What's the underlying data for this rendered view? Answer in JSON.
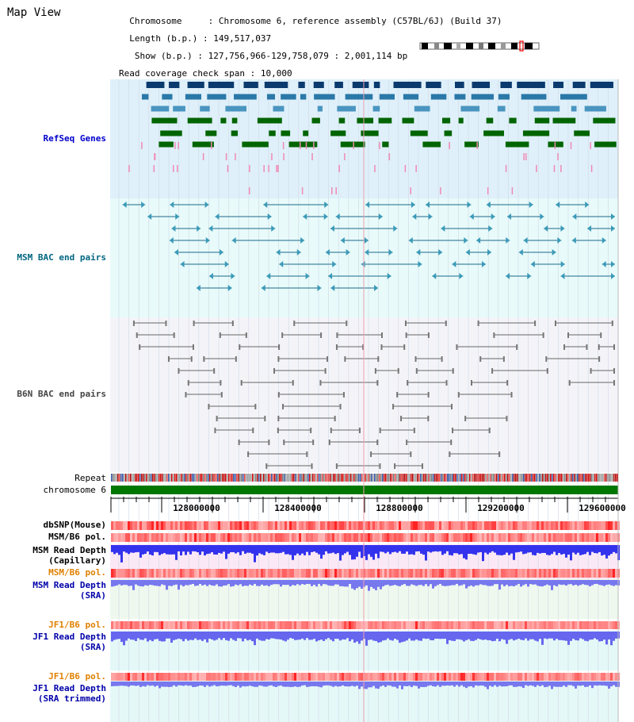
{
  "window": {
    "title": "Map View"
  },
  "info": {
    "chromosome_label": "Chromosome",
    "chromosome_value": "Chromosome 6, reference assembly (C57BL/6J) (Build 37)",
    "length_label": "Length (b.p.)",
    "length_value": "149,517,037",
    "show_label": "Show (b.p.)",
    "show_value": "127,756,966-129,758,079 : 2,001,114 bp",
    "coverage_label": "Read coverage check span",
    "coverage_value": "10,000"
  },
  "tracks": {
    "refseq": "RefSeq Genes",
    "msm_bac": "MSM BAC end pairs",
    "b6n_bac": "B6N BAC end pairs",
    "repeat": "Repeat",
    "chromosome": "chromosome 6",
    "dbsnp": "dbSNP(Mouse)",
    "msm_b6_pol_1": "MSM/B6 pol.",
    "msm_depth_cap_1": "MSM Read Depth",
    "msm_depth_cap_2": "(Capillary)",
    "msm_b6_pol_2": "MSM/B6 pol.",
    "msm_depth_sra_1": "MSM Read Depth",
    "msm_depth_sra_2": "(SRA)",
    "jf1_b6_pol_1": "JF1/B6 pol.",
    "jf1_depth_sra_1": "JF1 Read Depth",
    "jf1_depth_sra_2": "(SRA)",
    "jf1_b6_pol_2": "JF1/B6 pol.",
    "jf1_depth_trim_1": "JF1 Read Depth",
    "jf1_depth_trim_2": "(SRA trimmed)"
  },
  "axis": {
    "ticks": [
      "128000000",
      "128400000",
      "128800000",
      "129200000",
      "129600000"
    ]
  },
  "colors": {
    "refseq_label": "#0000cc",
    "msm_label": "#006680",
    "b6n_label": "#444444",
    "pol_label": "#e08000",
    "depth_label": "#0000aa",
    "refseq_bg": "#dff0fa",
    "msm_bg": "#e8fafa",
    "b6n_bg": "#f4f4f8",
    "chromosome_bar": "#007700"
  }
}
